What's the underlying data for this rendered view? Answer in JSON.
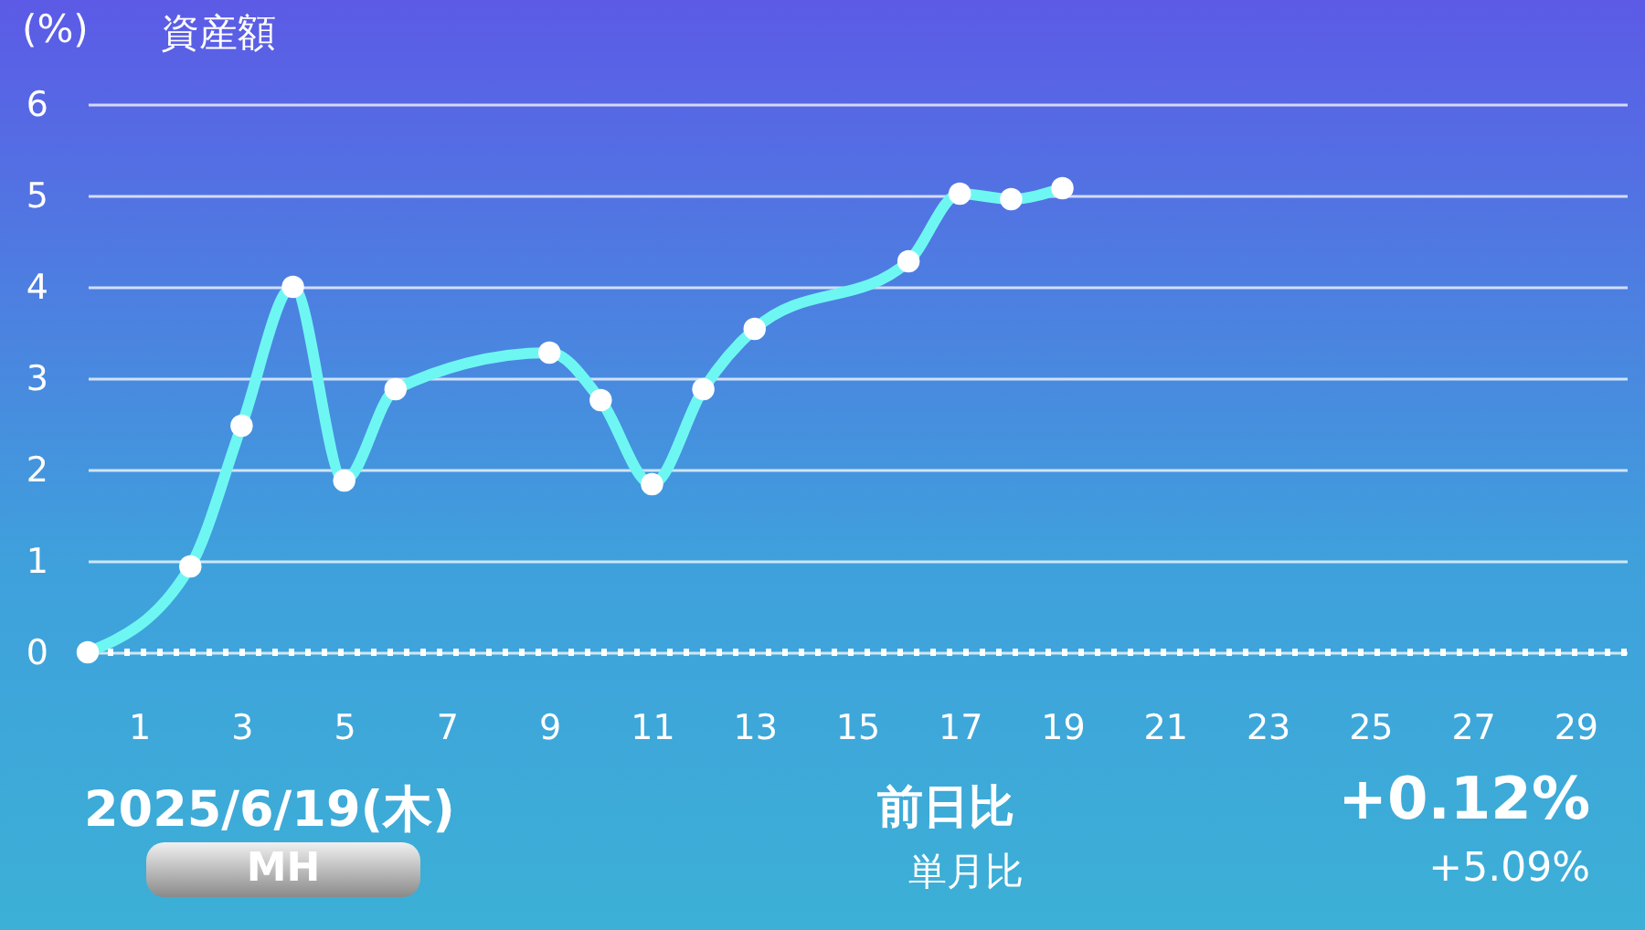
{
  "chart_data": {
    "type": "line",
    "title": "資産額",
    "ylabel": "(%)",
    "x": [
      0,
      2,
      3,
      4,
      5,
      6,
      9,
      10,
      11,
      12,
      13,
      16,
      17,
      18,
      19
    ],
    "series": [
      {
        "color": "#6ef7f2",
        "values": [
          0,
          0.94,
          2.48,
          4.0,
          1.88,
          2.88,
          3.28,
          2.76,
          1.84,
          2.88,
          3.54,
          4.28,
          5.02,
          4.96,
          5.08
        ]
      }
    ],
    "xlim": [
      0,
      30
    ],
    "xticks": [
      1,
      3,
      5,
      7,
      9,
      11,
      13,
      15,
      17,
      19,
      21,
      23,
      25,
      27,
      29
    ],
    "ylim": [
      0,
      6
    ],
    "yticks": [
      0,
      1,
      2,
      3,
      4,
      5,
      6
    ],
    "grid": "y",
    "marker": "circle",
    "line_style": "solid",
    "ref_lines": [
      {
        "axis": "y",
        "value": 0,
        "color": "#ffffff",
        "line_style": "dotted"
      }
    ],
    "annotations": [
      "2025/6/19(木)",
      "MH",
      "前日比",
      "単月比",
      "+0.12%",
      "+5.09%"
    ]
  }
}
